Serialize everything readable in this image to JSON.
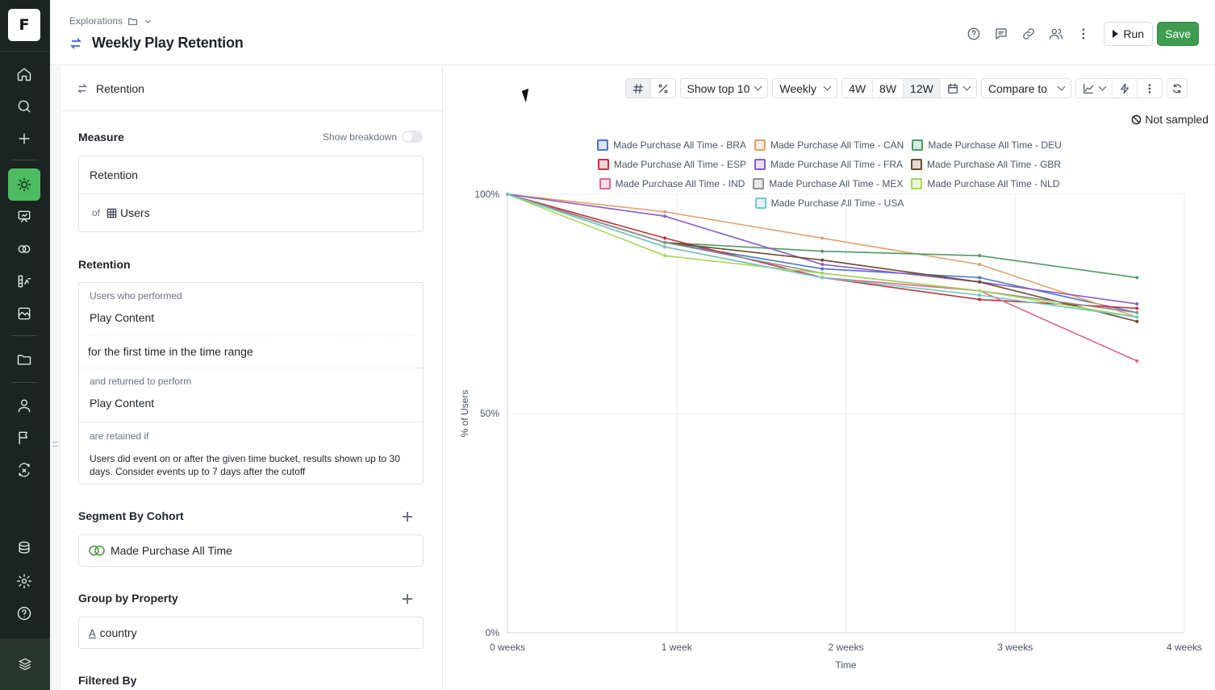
{
  "app": {
    "logo_letter": "F"
  },
  "header": {
    "breadcrumb": "Explorations",
    "title": "Weekly Play Retention",
    "run_label": "Run",
    "save_label": "Save"
  },
  "left_panel": {
    "top_label": "Retention",
    "measure": {
      "title": "Measure",
      "breakdown_label": "Show breakdown",
      "breakdown_on": false,
      "metric": "Retention",
      "of_label": "of",
      "entity": "Users"
    },
    "retention": {
      "title": "Retention",
      "first_label": "Users who performed",
      "first_event": "Play Content",
      "first_qualifier": "for the first time in the time range",
      "return_label": "and returned to perform",
      "return_event": "Play Content",
      "retained_label": "are retained if",
      "retained_desc": "Users did event on or after the given time bucket, results shown up to 30 days. Consider events up to 7 days after the cutoff"
    },
    "segment": {
      "title": "Segment By Cohort",
      "cohort": "Made Purchase All Time"
    },
    "group": {
      "title": "Group by Property",
      "property": "country"
    },
    "filter": {
      "title": "Filtered By"
    }
  },
  "toolbar": {
    "show_top": "Show top 10",
    "granularity": "Weekly",
    "ranges": [
      "4W",
      "8W",
      "12W"
    ],
    "selected_range": "12W",
    "compare": "Compare to"
  },
  "not_sampled": "Not sampled",
  "chart_data": {
    "type": "line",
    "xlabel": "Time",
    "ylabel": "% of Users",
    "x": [
      "0 weeks",
      "1 week",
      "2 weeks",
      "3 weeks",
      "4 weeks"
    ],
    "y_ticks": [
      "0%",
      "50%",
      "100%"
    ],
    "ylim": [
      0,
      100
    ],
    "grid": true,
    "legend_position": "top",
    "series": [
      {
        "name": "Made Purchase All Time - BRA",
        "color": "#4a74c9",
        "values": [
          100,
          89,
          83,
          81,
          73
        ]
      },
      {
        "name": "Made Purchase All Time - CAN",
        "color": "#e2a06a",
        "values": [
          100,
          96,
          90,
          84,
          72
        ]
      },
      {
        "name": "Made Purchase All Time - DEU",
        "color": "#4d9a62",
        "values": [
          100,
          89,
          87,
          86,
          81
        ]
      },
      {
        "name": "Made Purchase All Time - ESP",
        "color": "#c0313e",
        "values": [
          100,
          90,
          81,
          76,
          74
        ]
      },
      {
        "name": "Made Purchase All Time - FRA",
        "color": "#8a5cc4",
        "values": [
          100,
          95,
          84,
          80,
          75
        ]
      },
      {
        "name": "Made Purchase All Time - GBR",
        "color": "#6b4a2b",
        "values": [
          100,
          89,
          85,
          80,
          71
        ]
      },
      {
        "name": "Made Purchase All Time - IND",
        "color": "#d9668e",
        "values": [
          100,
          88,
          81,
          78,
          62
        ]
      },
      {
        "name": "Made Purchase All Time - MEX",
        "color": "#8f8f8f",
        "values": [
          100,
          89,
          82,
          78,
          73
        ]
      },
      {
        "name": "Made Purchase All Time - NLD",
        "color": "#a9d45a",
        "values": [
          100,
          86,
          82,
          78,
          72
        ]
      },
      {
        "name": "Made Purchase All Time - USA",
        "color": "#6cc9c1",
        "values": [
          100,
          88,
          81,
          77,
          72
        ]
      }
    ]
  }
}
